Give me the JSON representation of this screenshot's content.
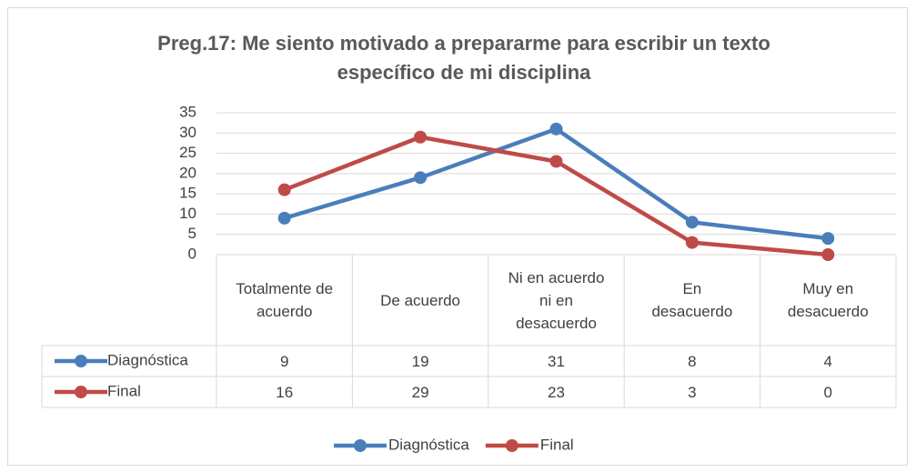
{
  "chart_data": {
    "type": "line",
    "title": "Preg.17: Me siento motivado a prepararme para escribir un texto específico de mi disciplina",
    "categories": [
      "Totalmente de acuerdo",
      "De acuerdo",
      "Ni en acuerdo ni en desacuerdo",
      "En desacuerdo",
      "Muy en desacuerdo"
    ],
    "series": [
      {
        "name": "Diagnóstica",
        "color": "#4a7ebb",
        "values": [
          9,
          19,
          31,
          8,
          4
        ]
      },
      {
        "name": "Final",
        "color": "#be4b48",
        "values": [
          16,
          29,
          23,
          3,
          0
        ]
      }
    ],
    "ylim": [
      0,
      35
    ],
    "yticks": [
      0,
      5,
      10,
      15,
      20,
      25,
      30,
      35
    ],
    "grid": true,
    "legend": "bottom"
  }
}
